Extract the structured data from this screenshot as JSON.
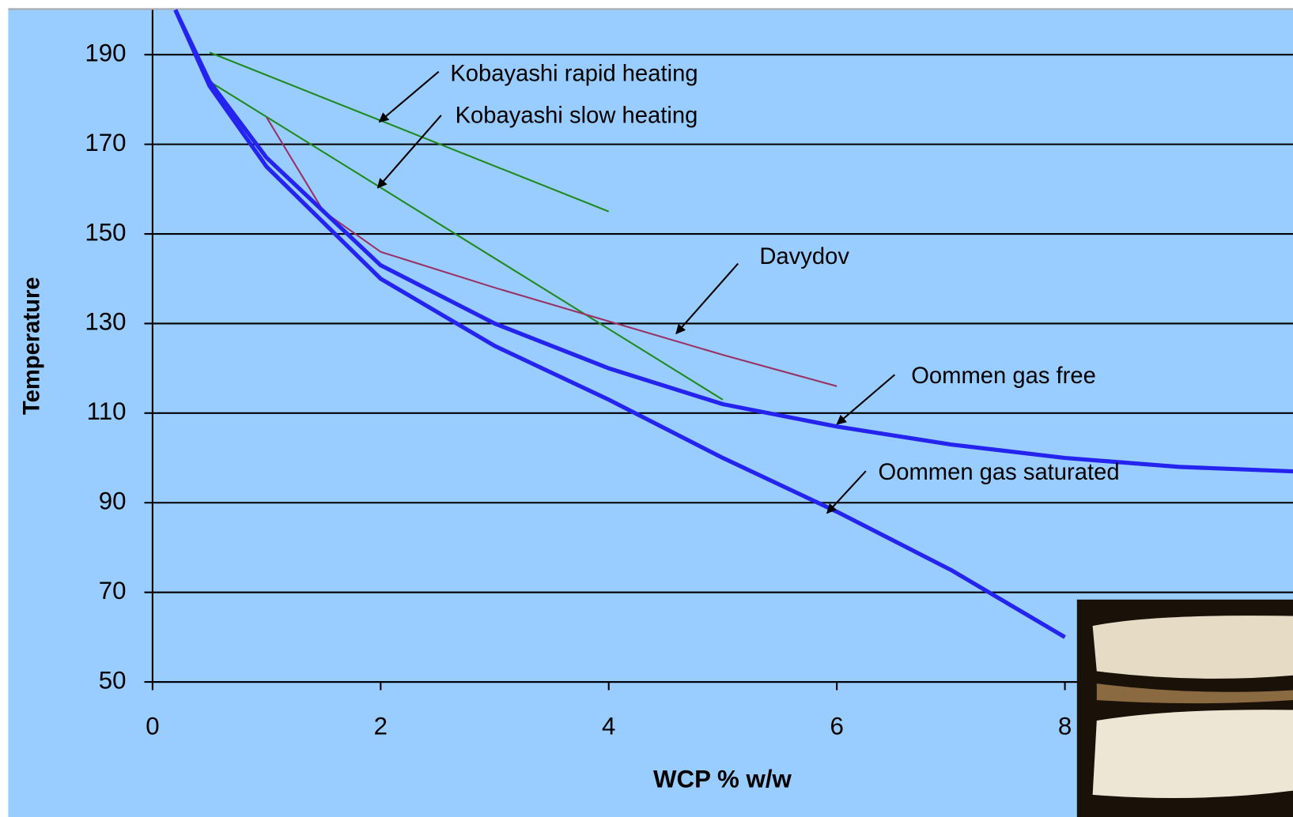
{
  "chart_data": {
    "type": "line",
    "xlabel": "WCP  % w/w",
    "ylabel": "Temperature",
    "xlim": [
      0,
      10
    ],
    "ylim": [
      50,
      200
    ],
    "xticks": [
      0,
      2,
      4,
      6,
      8
    ],
    "yticks": [
      50,
      70,
      90,
      110,
      130,
      150,
      170,
      190
    ],
    "grid": true,
    "series": [
      {
        "name": "Kobayashi rapid heating",
        "color": "#1f8a1f",
        "x": [
          0.5,
          4
        ],
        "values": [
          190.5,
          155
        ]
      },
      {
        "name": "Kobayashi slow heating",
        "color": "#1f8a1f",
        "x": [
          0.5,
          5
        ],
        "values": [
          184,
          113
        ]
      },
      {
        "name": "Davydov",
        "color": "#993366",
        "x": [
          1,
          1.5,
          2,
          3,
          4,
          5,
          6
        ],
        "values": [
          176,
          155,
          146,
          138,
          130.5,
          123,
          116
        ]
      },
      {
        "name": "Oommen gas free",
        "color": "#2424ee",
        "x": [
          0.2,
          0.5,
          1,
          2,
          3,
          4,
          5,
          6,
          7,
          8,
          9,
          10
        ],
        "values": [
          200,
          184,
          167,
          143,
          130,
          120,
          112,
          107,
          103,
          100,
          98,
          97
        ]
      },
      {
        "name": "Oommen gas saturated",
        "color": "#2424ee",
        "x": [
          0.2,
          0.5,
          1,
          2,
          3,
          4,
          5,
          6,
          7,
          8
        ],
        "values": [
          200,
          183,
          165,
          140,
          125,
          113,
          100,
          88,
          75,
          60
        ]
      }
    ]
  }
}
